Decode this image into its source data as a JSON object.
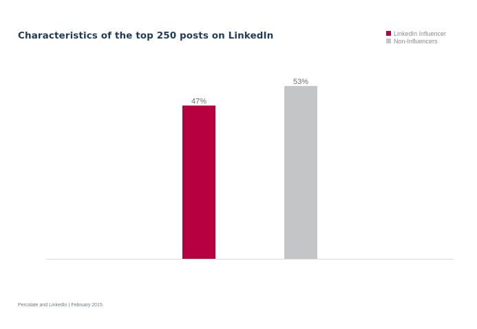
{
  "colors": {
    "title": "#1f3b5a",
    "baseline": "#d9d9d9",
    "label": "#6f6f6f"
  },
  "footer": "Percolate and LinkedIn | February 2015",
  "chart_data": {
    "type": "bar",
    "title": "Characteristics of the top 250 posts on LinkedIn",
    "categories": [
      "LinkedIn Influencer",
      "Non-Influencers"
    ],
    "values": [
      47,
      53
    ],
    "value_labels": [
      "47%",
      "53%"
    ],
    "colors": [
      "#b5003f",
      "#c4c5c7"
    ],
    "ylim": [
      0,
      57
    ],
    "grid": false,
    "legend": {
      "position": "top-right",
      "entries": [
        {
          "name": "LinkedIn Influencer",
          "color": "#b5003f"
        },
        {
          "name": "Non-Influencers",
          "color": "#c4c5c7"
        }
      ]
    }
  }
}
